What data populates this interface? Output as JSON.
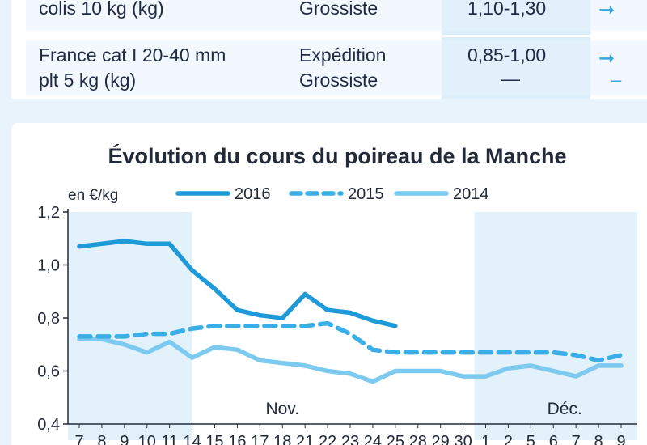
{
  "table": {
    "rows": [
      {
        "product": [
          "colis 10 kg (kg)"
        ],
        "stage": [
          "Grossiste"
        ],
        "price": [
          "1,10-1,30"
        ],
        "trend": [
          "arrow-right"
        ]
      },
      {
        "product": [
          "France cat I 20-40 mm",
          "plt 5 kg (kg)"
        ],
        "stage": [
          "Expédition",
          "Grossiste"
        ],
        "price": [
          "0,85-1,00",
          "—"
        ],
        "trend": [
          "arrow-right",
          "dash"
        ]
      }
    ]
  },
  "colors": {
    "s2016": "#1e9ad8",
    "s2015": "#3aaee6",
    "s2014": "#7ccaf0",
    "band": "#e3f1fb",
    "axis": "#222a3a"
  },
  "chart_data": {
    "type": "line",
    "title": "Évolution du cours du poireau de la Manche",
    "ylabel": "en €/kg",
    "ylim": [
      0.4,
      1.2
    ],
    "yticks": [
      "0,4",
      "0,6",
      "0,8",
      "1,0",
      "1,2"
    ],
    "yticks_values": [
      0.4,
      0.6,
      0.8,
      1.0,
      1.2
    ],
    "x": [
      "7",
      "8",
      "9",
      "10",
      "11",
      "14",
      "15",
      "16",
      "17",
      "18",
      "21",
      "22",
      "23",
      "24",
      "25",
      "28",
      "29",
      "30",
      "1",
      "2",
      "5",
      "6",
      "7",
      "8",
      "9"
    ],
    "month_labels": [
      {
        "label": "Nov.",
        "at_index": 9
      },
      {
        "label": "Déc.",
        "at_index": 21.5
      }
    ],
    "shaded_ranges": [
      [
        0,
        5
      ],
      [
        18,
        24
      ]
    ],
    "legend": "top",
    "series": [
      {
        "name": "2016",
        "style": "solid-thick",
        "values": [
          1.07,
          1.08,
          1.09,
          1.08,
          1.08,
          0.98,
          0.91,
          0.83,
          0.81,
          0.8,
          0.89,
          0.83,
          0.82,
          0.79,
          0.77,
          null,
          null,
          null,
          null,
          null,
          null,
          null,
          null,
          null,
          null
        ]
      },
      {
        "name": "2015",
        "style": "dashed",
        "values": [
          0.73,
          0.73,
          0.73,
          0.74,
          0.74,
          0.76,
          0.77,
          0.77,
          0.77,
          0.77,
          0.77,
          0.78,
          0.74,
          0.68,
          0.67,
          0.67,
          0.67,
          0.67,
          0.67,
          0.67,
          0.67,
          0.67,
          0.66,
          0.64,
          0.66
        ]
      },
      {
        "name": "2014",
        "style": "solid-light",
        "values": [
          0.72,
          0.72,
          0.7,
          0.67,
          0.71,
          0.65,
          0.69,
          0.68,
          0.64,
          0.63,
          0.62,
          0.6,
          0.59,
          0.56,
          0.6,
          0.6,
          0.6,
          0.58,
          0.58,
          0.61,
          0.62,
          0.6,
          0.58,
          0.62,
          0.62
        ]
      }
    ]
  }
}
